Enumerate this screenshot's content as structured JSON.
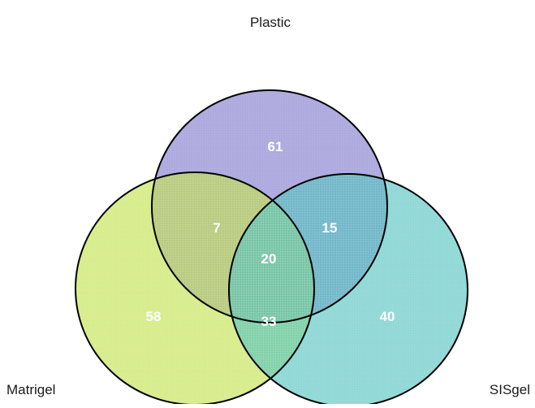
{
  "diagram": {
    "type": "venn",
    "sets": [
      {
        "key": "plastic",
        "label": "Plastic",
        "color": "#7b74c9"
      },
      {
        "key": "matrigel",
        "label": "Matrigel",
        "color": "#bfe045"
      },
      {
        "key": "sisgel",
        "label": "SISgel",
        "color": "#4cc0bd"
      }
    ],
    "regions": {
      "plastic_only": "61",
      "matrigel_only": "58",
      "sisgel_only": "40",
      "plastic_matrigel": "7",
      "plastic_sisgel": "15",
      "matrigel_sisgel": "33",
      "all_three": "20"
    },
    "outline_color": "#000000"
  }
}
